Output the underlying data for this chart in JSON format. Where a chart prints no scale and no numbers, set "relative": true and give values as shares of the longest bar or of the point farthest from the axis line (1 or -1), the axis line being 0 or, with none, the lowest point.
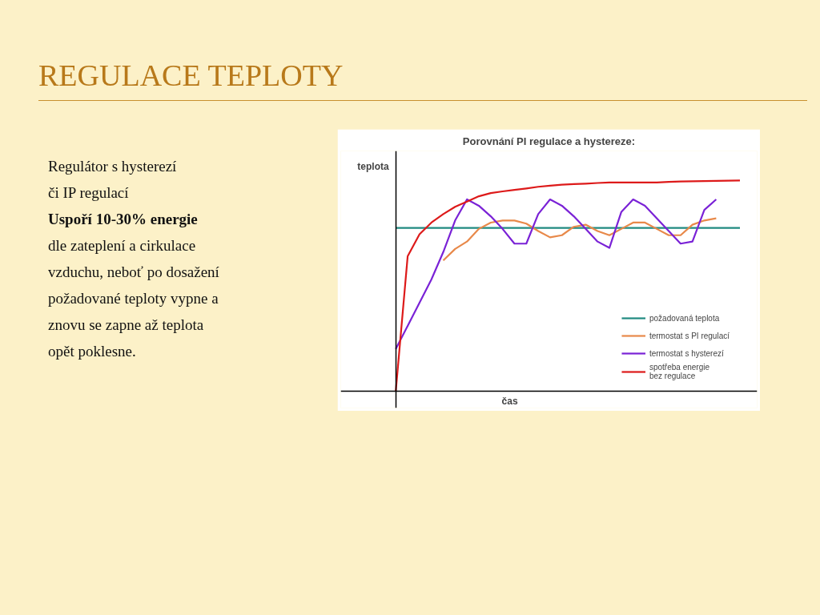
{
  "chart_data": {
    "type": "line",
    "title": "Porovnání PI regulace a hystereze:",
    "xlabel": "čas",
    "ylabel": "teplota",
    "relative": true,
    "grid": false,
    "legend": "bottom right",
    "marker": "none",
    "line_style": "solid",
    "annotations": [
      "REGULACE TEPLOTY",
      "Regulátor s hysterezí",
      "či IP regulací",
      "Uspoří 10-30% energie",
      "dle zateplení a cirkulace",
      "vzduchu, neboť po dosažení",
      "požadované teploty vypne a",
      "znovu se zapne až teplota",
      "opět poklesne."
    ],
    "categories": [
      null,
      null,
      null,
      null,
      null,
      null,
      null,
      null,
      null,
      null,
      null,
      null,
      null,
      null,
      null,
      null,
      null,
      null,
      null,
      null,
      null,
      null,
      null,
      null,
      null,
      null,
      null,
      null,
      null,
      null
    ],
    "series": [
      {
        "name": "požadovaná teplota",
        "color": "#1f8a80",
        "values": [
          0.775,
          0.775,
          0.775,
          0.775,
          0.775,
          0.775,
          0.775,
          0.775,
          0.775,
          0.775,
          0.775,
          0.775,
          0.775,
          0.775,
          0.775,
          0.775,
          0.775,
          0.775,
          0.775,
          0.775,
          0.775,
          0.775,
          0.775,
          0.775,
          0.775,
          0.775,
          0.775,
          0.775,
          0.775,
          0.775
        ]
      },
      {
        "name": "termostat s PI regulací",
        "color": "#e8894a",
        "values": [
          null,
          null,
          null,
          null,
          0.62,
          0.675,
          0.71,
          0.77,
          0.8,
          0.81,
          0.81,
          0.795,
          0.76,
          0.73,
          0.74,
          0.78,
          0.79,
          0.76,
          0.74,
          0.77,
          0.8,
          0.8,
          0.77,
          0.74,
          0.74,
          0.79,
          0.81,
          0.82,
          null,
          null
        ]
      },
      {
        "name": "termostat s hysterezí",
        "color": "#7a22d6",
        "values": [
          0.2,
          0.31,
          0.42,
          0.53,
          0.66,
          0.81,
          0.91,
          0.88,
          0.83,
          0.77,
          0.7,
          0.7,
          0.84,
          0.91,
          0.88,
          0.83,
          0.77,
          0.71,
          0.68,
          0.85,
          0.91,
          0.88,
          0.82,
          0.76,
          0.7,
          0.71,
          0.86,
          0.91,
          null,
          null
        ]
      },
      {
        "name": "spotřeba energie\nbez regulace",
        "color": "#dd1a1a",
        "values": [
          0,
          0.64,
          0.745,
          0.8,
          0.84,
          0.875,
          0.9,
          0.925,
          0.94,
          0.948,
          0.955,
          0.962,
          0.97,
          0.975,
          0.98,
          0.983,
          0.985,
          0.988,
          0.99,
          0.99,
          0.99,
          0.99,
          0.99,
          0.993,
          0.995,
          0.996,
          0.997,
          0.998,
          0.999,
          1
        ]
      }
    ]
  }
}
